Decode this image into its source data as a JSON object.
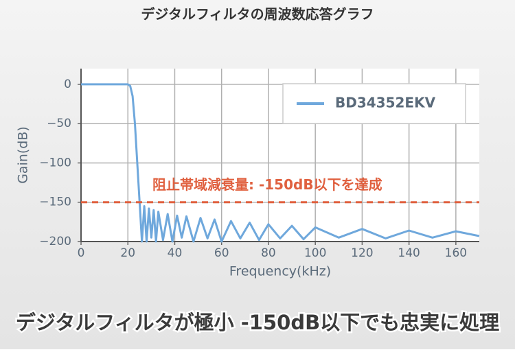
{
  "chart_data": {
    "type": "line",
    "title": "デジタルフィルタの周波数応答グラフ",
    "caption": "デジタルフィルタが極小 -150dB以下でも忠実に処理",
    "x_label": "Frequency(kHz)",
    "y_label": "Gain(dB)",
    "xlim": [
      0,
      170
    ],
    "ylim": [
      -200,
      20
    ],
    "xticks": [
      0,
      20,
      40,
      60,
      80,
      100,
      120,
      140,
      160
    ],
    "yticks": [
      {
        "value": -200,
        "label": "−200"
      },
      {
        "value": -150,
        "label": "−150"
      },
      {
        "value": -100,
        "label": "−100"
      },
      {
        "value": -50,
        "label": "−50"
      },
      0
    ],
    "grid": true,
    "legend": "top-right",
    "threshold": {
      "value": -150,
      "label": "阻止帯域減衰量: -150dB以下を達成",
      "color": "#e0603f"
    },
    "x": [
      0,
      10,
      20,
      21,
      22,
      23,
      24,
      25,
      26,
      27,
      28,
      29,
      30,
      31,
      32,
      33,
      35,
      37,
      39,
      41,
      43,
      45,
      48,
      51,
      54,
      57,
      60,
      64,
      68,
      72,
      76,
      80,
      85,
      90,
      95,
      100,
      110,
      120,
      130,
      140,
      150,
      160,
      170
    ],
    "series": [
      {
        "name": "BD34352EKV",
        "color": "#6fa8dc",
        "values": [
          0,
          0,
          0,
          -2,
          -15,
          -50,
          -100,
          -150,
          -200,
          -155,
          -200,
          -158,
          -195,
          -160,
          -200,
          -162,
          -198,
          -165,
          -200,
          -167,
          -195,
          -168,
          -200,
          -170,
          -196,
          -172,
          -200,
          -174,
          -196,
          -176,
          -198,
          -178,
          -196,
          -180,
          -197,
          -182,
          -195,
          -184,
          -196,
          -186,
          -195,
          -187,
          -193
        ]
      }
    ]
  }
}
